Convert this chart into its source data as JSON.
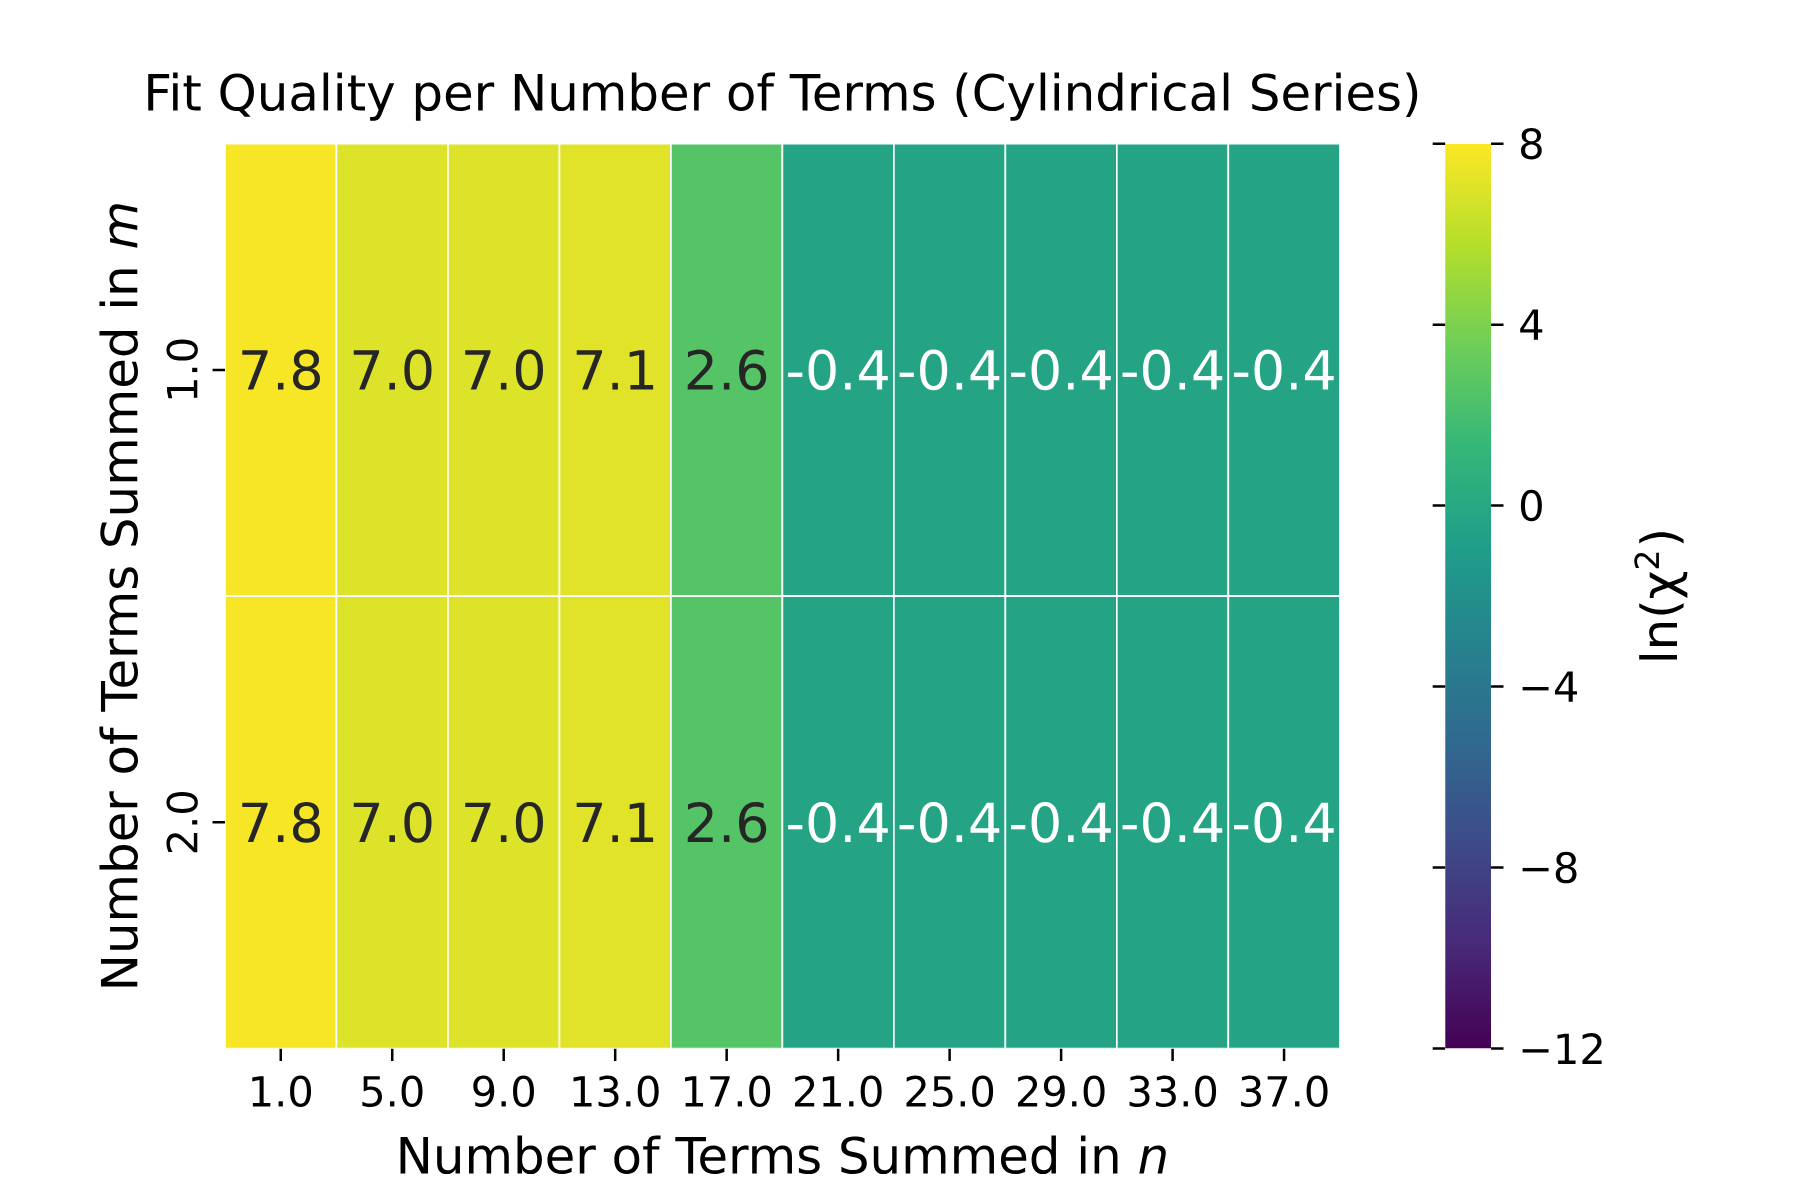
{
  "chart_data": {
    "type": "heatmap",
    "title": "Fit Quality per Number of Terms (Cylindrical Series)",
    "xlabel": "Number of Terms Summed in *n*",
    "ylabel": "Number of Terms Summed in *m*",
    "clabel": "ln(χ$^{2}$)",
    "categories": [
      "1.0",
      "5.0",
      "9.0",
      "13.0",
      "17.0",
      "21.0",
      "25.0",
      "29.0",
      "33.0",
      "37.0"
    ],
    "y_categories": [
      "1.0",
      "2.0"
    ],
    "cells": [
      [
        7.8,
        7.0,
        7.0,
        7.1,
        2.6,
        -0.4,
        -0.4,
        -0.4,
        -0.4,
        -0.4
      ],
      [
        7.8,
        7.0,
        7.0,
        7.1,
        2.6,
        -0.4,
        -0.4,
        -0.4,
        -0.4,
        -0.4
      ]
    ],
    "cell_labels": [
      [
        "7.8",
        "7.0",
        "7.0",
        "7.1",
        "2.6",
        "-0.4",
        "-0.4",
        "-0.4",
        "-0.4",
        "-0.4"
      ],
      [
        "7.8",
        "7.0",
        "7.0",
        "7.1",
        "2.6",
        "-0.4",
        "-0.4",
        "-0.4",
        "-0.4",
        "-0.4"
      ]
    ],
    "clim": [
      -12,
      8
    ],
    "cticks": [
      {
        "value": -12,
        "label": "−12"
      },
      {
        "value": -8,
        "label": "−8"
      },
      {
        "value": -4,
        "label": "−4"
      },
      0,
      4,
      8
    ]
  }
}
